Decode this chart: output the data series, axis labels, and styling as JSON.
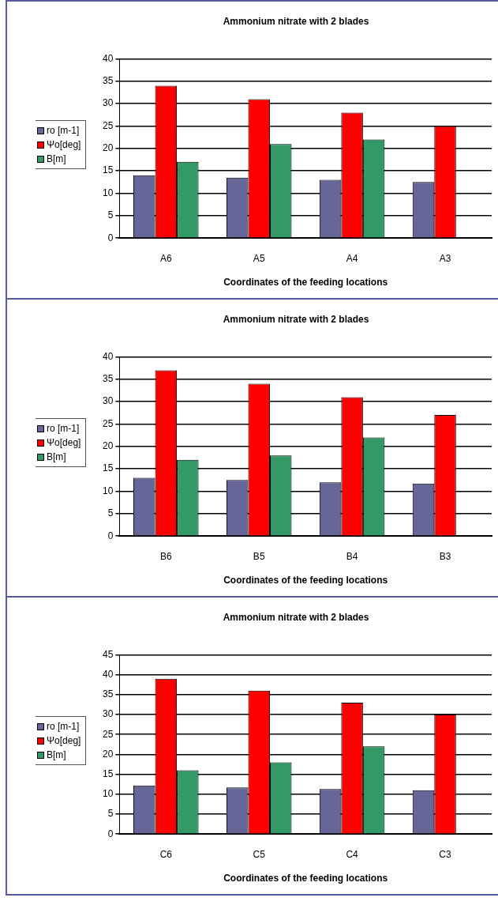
{
  "chart_data": [
    {
      "type": "bar",
      "title": "Ammonium nitrate with 2 blades",
      "xlabel": "Coordinates of the feeding locations",
      "categories": [
        "A6",
        "A5",
        "A4",
        "A3"
      ],
      "ylim": [
        0,
        40
      ],
      "yticks": [
        0,
        5,
        10,
        15,
        20,
        25,
        30,
        35,
        40
      ],
      "grid": "y",
      "legend": "left",
      "series": [
        {
          "name": "ro [m-1]",
          "color": "#666699",
          "values": [
            14,
            13.5,
            13,
            12.5
          ]
        },
        {
          "name": "Ψo[deg]",
          "color": "#ff0000",
          "values": [
            34,
            31,
            28,
            25
          ]
        },
        {
          "name": "B[m]",
          "color": "#339966",
          "values": [
            17,
            21,
            22,
            null
          ]
        }
      ]
    },
    {
      "type": "bar",
      "title": "Ammonium nitrate with 2 blades",
      "xlabel": "Coordinates of the feeding locations",
      "categories": [
        "B6",
        "B5",
        "B4",
        "B3"
      ],
      "ylim": [
        0,
        40
      ],
      "yticks": [
        0,
        5,
        10,
        15,
        20,
        25,
        30,
        35,
        40
      ],
      "grid": "y",
      "legend": "left",
      "series": [
        {
          "name": "ro [m-1]",
          "color": "#666699",
          "values": [
            13,
            12.5,
            12,
            11.7
          ]
        },
        {
          "name": "Ψo[deg]",
          "color": "#ff0000",
          "values": [
            37,
            34,
            31,
            27
          ]
        },
        {
          "name": "B[m]",
          "color": "#339966",
          "values": [
            17,
            18,
            22,
            null
          ]
        }
      ]
    },
    {
      "type": "bar",
      "title": "Ammonium nitrate with 2 blades",
      "xlabel": "Coordinates of the feeding locations",
      "categories": [
        "C6",
        "C5",
        "C4",
        "C3"
      ],
      "ylim": [
        0,
        45
      ],
      "yticks": [
        0,
        5,
        10,
        15,
        20,
        25,
        30,
        35,
        40,
        45
      ],
      "grid": "y",
      "legend": "left",
      "series": [
        {
          "name": "ro [m-1]",
          "color": "#666699",
          "values": [
            12.2,
            11.7,
            11.3,
            11
          ]
        },
        {
          "name": "Ψo[deg]",
          "color": "#ff0000",
          "values": [
            39,
            36,
            33,
            30
          ]
        },
        {
          "name": "B[m]",
          "color": "#339966",
          "values": [
            16,
            18,
            22,
            null
          ]
        }
      ]
    }
  ]
}
